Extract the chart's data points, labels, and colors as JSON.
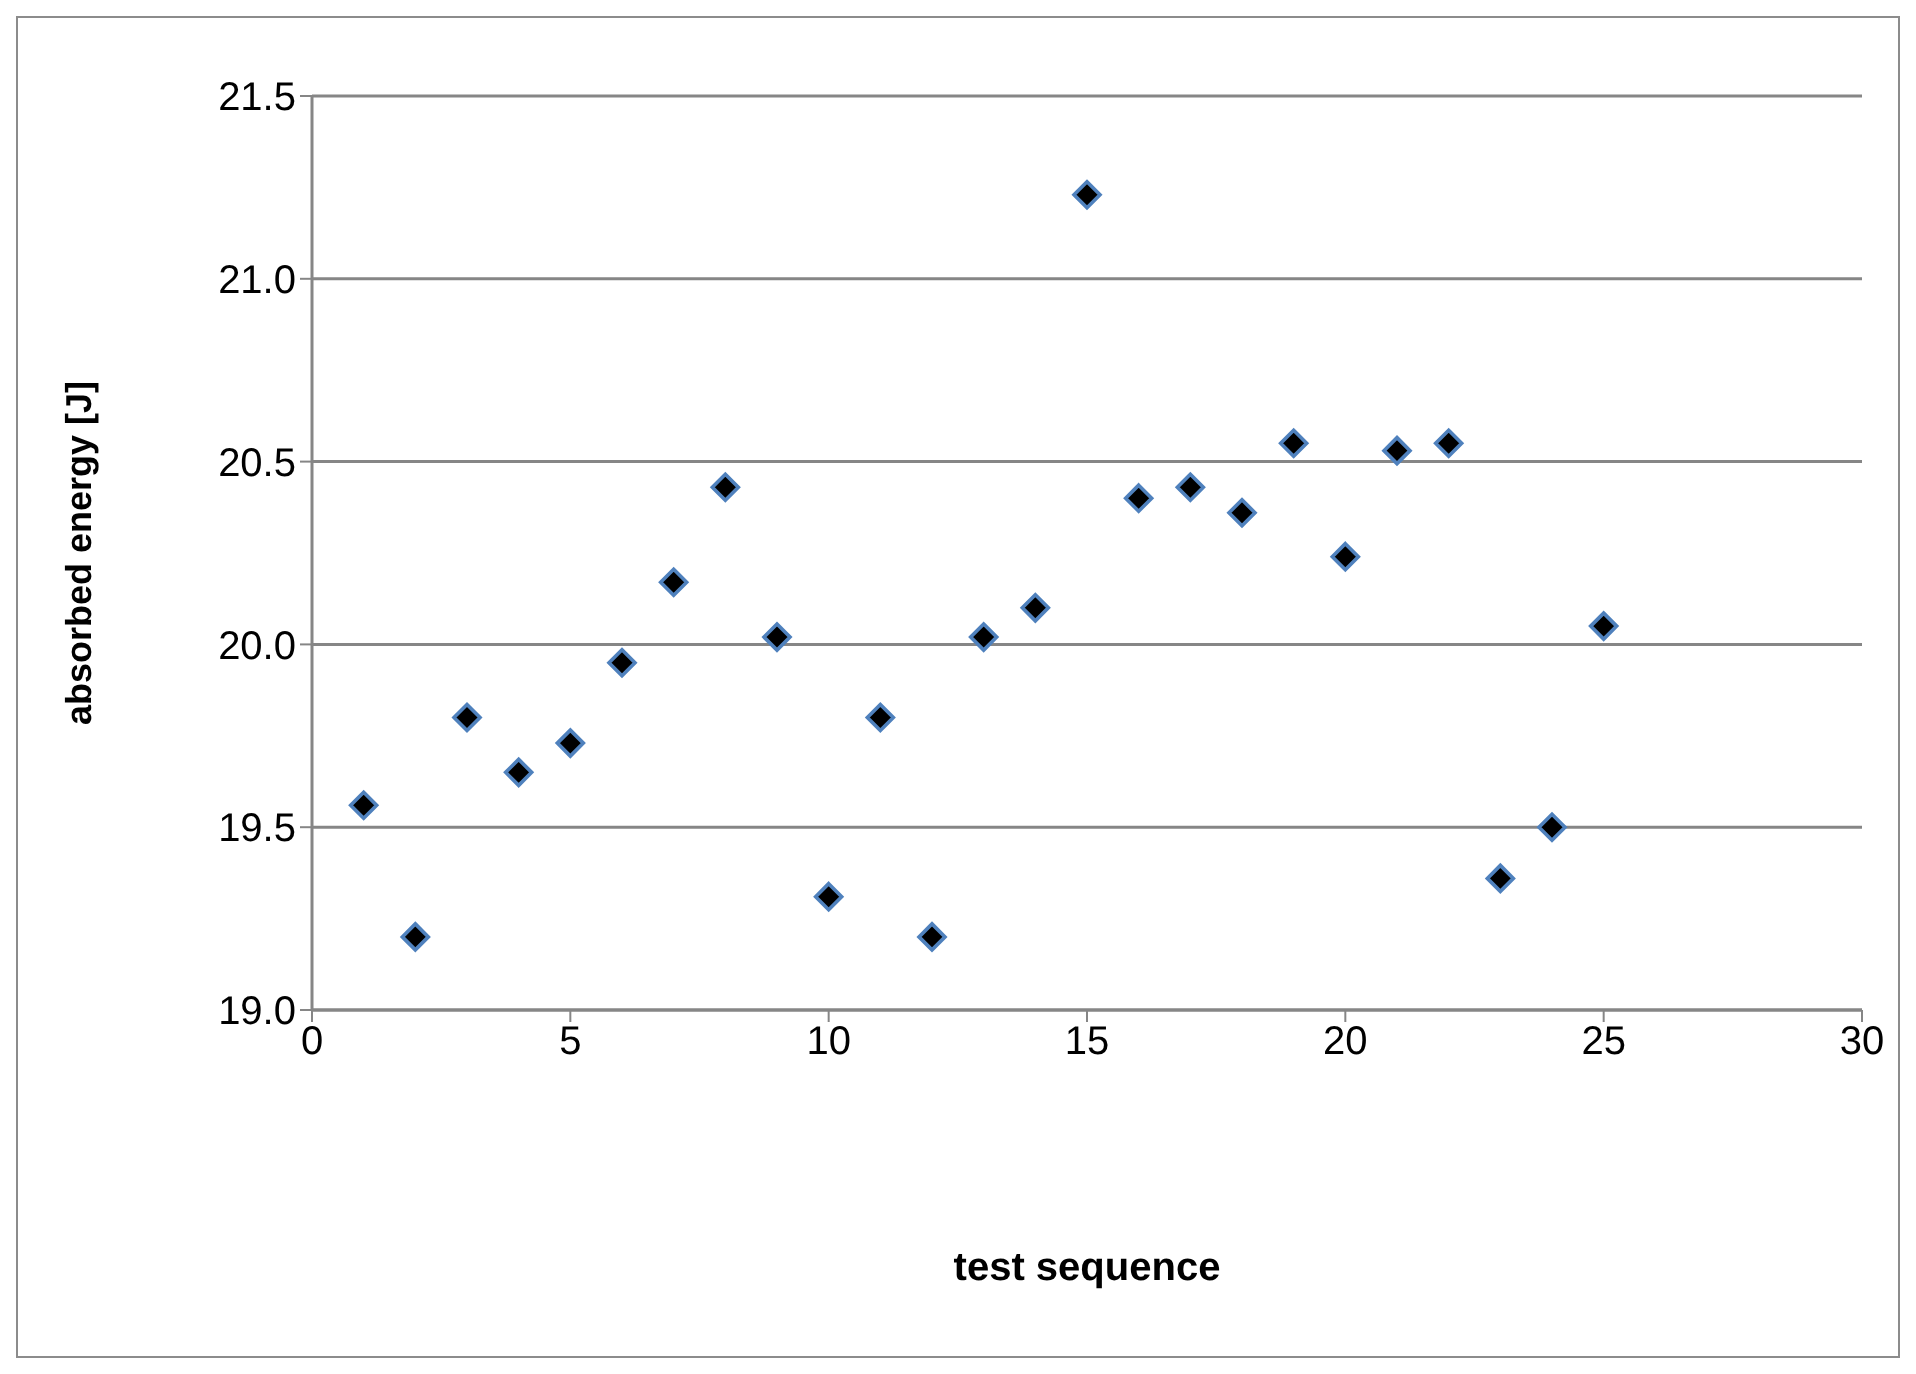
{
  "chart_data": {
    "type": "scatter",
    "xlabel": "test sequence",
    "ylabel": "absorbed energy [J]",
    "x": [
      1,
      2,
      3,
      4,
      5,
      6,
      7,
      8,
      9,
      10,
      11,
      12,
      13,
      14,
      15,
      16,
      17,
      18,
      19,
      20,
      21,
      22,
      23,
      24,
      25
    ],
    "series": [
      {
        "color": "#000000",
        "values": [
          19.56,
          19.2,
          19.8,
          19.65,
          19.73,
          19.95,
          20.17,
          20.43,
          20.02,
          19.31,
          19.8,
          19.2,
          20.02,
          20.1,
          21.23,
          20.4,
          20.43,
          20.36,
          20.55,
          20.24,
          20.53,
          20.55,
          19.36,
          19.5,
          20.05
        ]
      }
    ],
    "xlim": [
      0,
      30
    ],
    "xticks": [
      0,
      5,
      10,
      15,
      20,
      25,
      30
    ],
    "ylim": [
      19.0,
      21.5
    ],
    "yticks": [
      {
        "value": 19.0,
        "label": "19.0"
      },
      {
        "value": 19.5,
        "label": "19.5"
      },
      {
        "value": 20.0,
        "label": "20.0"
      },
      {
        "value": 20.5,
        "label": "20.5"
      },
      {
        "value": 21.0,
        "label": "21.0"
      },
      {
        "value": 21.5,
        "label": "21.5"
      }
    ],
    "grid": "y",
    "marker": "diamond",
    "legend": false
  }
}
